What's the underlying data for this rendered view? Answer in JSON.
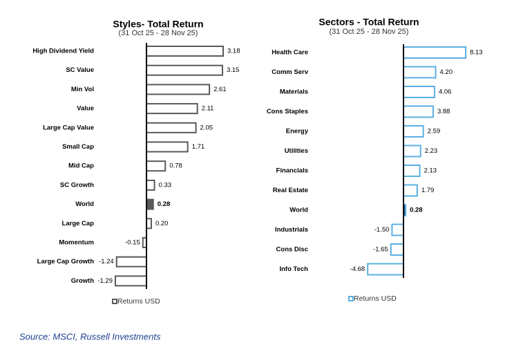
{
  "chart_data": [
    {
      "type": "bar",
      "orientation": "horizontal",
      "title": "Styles- Total Return",
      "subtitle": "(31 Oct 25 - 28 Nov 25)",
      "categories": [
        "High Dividend Yield",
        "SC Value",
        "Min Vol",
        "Value",
        "Large Cap Value",
        "Small Cap",
        "Mid Cap",
        "SC Growth",
        "World",
        "Large Cap",
        "Momentum",
        "Large Cap Growth",
        "Growth"
      ],
      "series": [
        {
          "name": "Returns USD",
          "color": "#595959",
          "values": [
            3.18,
            3.15,
            2.61,
            2.11,
            2.05,
            1.71,
            0.78,
            0.33,
            0.28,
            0.2,
            -0.15,
            -1.24,
            -1.29
          ],
          "value_labels": [
            "3.18",
            "3.15",
            "2.61",
            "2.11",
            "2.05",
            "1.71",
            "0.78",
            "0.33",
            "0.28",
            "0.20",
            "-0.15",
            "-1.24",
            "-1.29"
          ],
          "fill_colors": [
            "#ffffff",
            "#ffffff",
            "#ffffff",
            "#ffffff",
            "#ffffff",
            "#ffffff",
            "#ffffff",
            "#ffffff",
            "#595959",
            "#ffffff",
            "#ffffff",
            "#ffffff",
            "#ffffff"
          ]
        }
      ]
    },
    {
      "type": "bar",
      "orientation": "horizontal",
      "title": "Sectors - Total Return",
      "subtitle": "(31 Oct 25 - 28 Nov 25)",
      "categories": [
        "Health Care",
        "Comm Serv",
        "Materials",
        "Cons Staples",
        "Energy",
        "Utilities",
        "Financials",
        "Real Estate",
        "World",
        "Industrials",
        "Cons Disc",
        "Info Tech"
      ],
      "series": [
        {
          "name": "Returns USD",
          "color": "#5aafe0",
          "values": [
            8.13,
            4.2,
            4.06,
            3.88,
            2.59,
            2.23,
            2.13,
            1.79,
            0.28,
            -1.5,
            -1.65,
            -4.68
          ],
          "value_labels": [
            "8.13",
            "4.20",
            "4.06",
            "3.88",
            "2.59",
            "2.23",
            "2.13",
            "1.79",
            "0.28",
            "-1.50",
            "-1.65",
            "-4.68"
          ],
          "fill_colors": [
            "#ffffff",
            "#ffffff",
            "#ffffff",
            "#ffffff",
            "#ffffff",
            "#ffffff",
            "#ffffff",
            "#ffffff",
            "#1f4e79",
            "#ffffff",
            "#ffffff",
            "#ffffff"
          ]
        }
      ]
    }
  ],
  "source": "Source: MSCI, Russell Investments"
}
